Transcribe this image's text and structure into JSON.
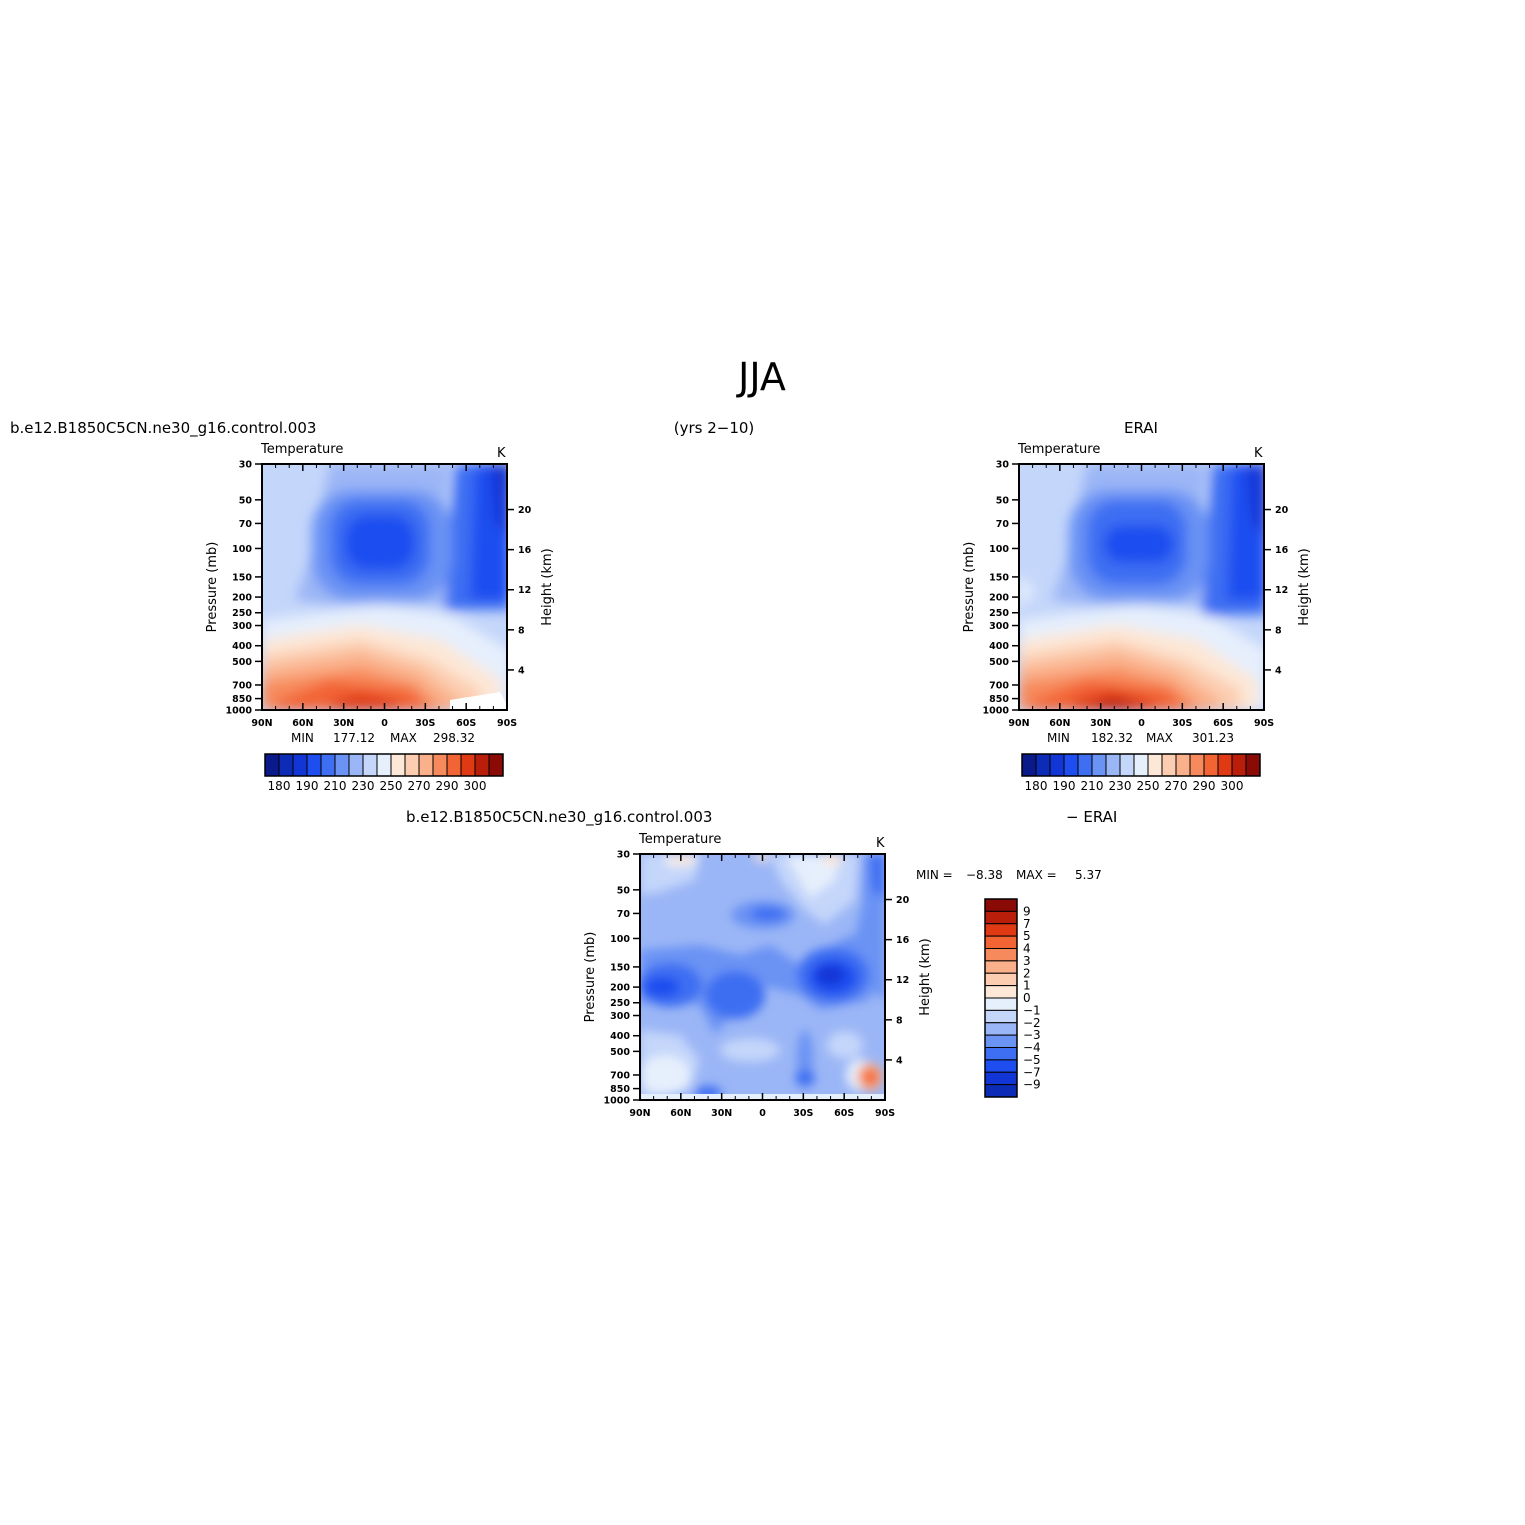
{
  "figure": {
    "title": "JJA",
    "case_label": "b.e12.B1850C5CN.ne30_g16.control.003",
    "years_label": "(yrs 2−10)",
    "obs_label": "ERAI",
    "diff_label_left": "b.e12.B1850C5CN.ne30_g16.control.003",
    "diff_label_right": "− ERAI"
  },
  "chart_data": [
    {
      "type": "heatmap",
      "panel": "model",
      "title": "Temperature",
      "units": "K",
      "xlabel": "",
      "ylabel": "Pressure (mb)",
      "ylabel_right": "Height (km)",
      "x_ticks": [
        "90N",
        "60N",
        "30N",
        "0",
        "30S",
        "60S",
        "90S"
      ],
      "y_ticks": [
        30,
        50,
        70,
        100,
        150,
        200,
        250,
        300,
        400,
        500,
        700,
        850,
        1000
      ],
      "y_right_ticks": [
        4,
        8,
        12,
        16,
        20
      ],
      "ylim": [
        1000,
        30
      ],
      "y_scale": "log",
      "min_label": "MIN",
      "min_value": "177.12",
      "max_label": "MAX",
      "max_value": "298.32",
      "colorbar_labels": [
        "180",
        "190",
        "210",
        "230",
        "250",
        "270",
        "290",
        "300"
      ]
    },
    {
      "type": "heatmap",
      "panel": "obs",
      "title": "Temperature",
      "units": "K",
      "xlabel": "",
      "ylabel": "Pressure (mb)",
      "ylabel_right": "Height (km)",
      "x_ticks": [
        "90N",
        "60N",
        "30N",
        "0",
        "30S",
        "60S",
        "90S"
      ],
      "y_ticks": [
        30,
        50,
        70,
        100,
        150,
        200,
        250,
        300,
        400,
        500,
        700,
        850,
        1000
      ],
      "y_right_ticks": [
        4,
        8,
        12,
        16,
        20
      ],
      "ylim": [
        1000,
        30
      ],
      "y_scale": "log",
      "min_label": "MIN",
      "min_value": "182.32",
      "max_label": "MAX",
      "max_value": "301.23",
      "colorbar_labels": [
        "180",
        "190",
        "210",
        "230",
        "250",
        "270",
        "290",
        "300"
      ]
    },
    {
      "type": "heatmap",
      "panel": "diff",
      "title": "Temperature",
      "units": "K",
      "xlabel": "",
      "ylabel": "Pressure (mb)",
      "ylabel_right": "Height (km)",
      "x_ticks": [
        "90N",
        "60N",
        "30N",
        "0",
        "30S",
        "60S",
        "90S"
      ],
      "y_ticks": [
        30,
        50,
        70,
        100,
        150,
        200,
        250,
        300,
        400,
        500,
        700,
        850,
        1000
      ],
      "y_right_ticks": [
        4,
        8,
        12,
        16,
        20
      ],
      "ylim": [
        1000,
        30
      ],
      "y_scale": "log",
      "min_label": "MIN =",
      "min_value": "−8.38",
      "max_label": "MAX =",
      "max_value": "5.37",
      "colorbar_labels": [
        "9",
        "7",
        "5",
        "4",
        "3",
        "2",
        "1",
        "0",
        "−1",
        "−2",
        "−3",
        "−4",
        "−5",
        "−7",
        "−9"
      ]
    }
  ],
  "colors": {
    "abs_scale": [
      "#0a1a8a",
      "#0c2cb8",
      "#1236d6",
      "#1e4ef0",
      "#3e6ef2",
      "#6a93f4",
      "#9bb6f6",
      "#c4d6fa",
      "#e6effc",
      "#fde7d6",
      "#fccdb0",
      "#fab08a",
      "#f78a5c",
      "#f26434",
      "#e03a14",
      "#b81e0a",
      "#8a0a06"
    ],
    "diff_scale": [
      "#8a0a06",
      "#b81e0a",
      "#e03a14",
      "#f26434",
      "#f78a5c",
      "#fab08a",
      "#fccdb0",
      "#fde7d6",
      "#e6effc",
      "#c4d6fa",
      "#9bb6f6",
      "#6a93f4",
      "#3e6ef2",
      "#1e4ef0",
      "#1236d6",
      "#0c2cb8",
      "#0a1a8a"
    ]
  }
}
